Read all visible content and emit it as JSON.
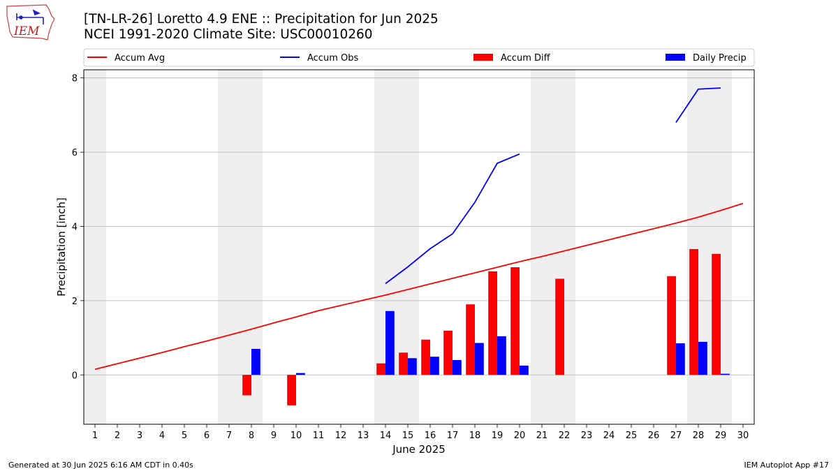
{
  "header": {
    "title_line1": "[TN-LR-26] Loretto 4.9 ENE :: Precipitation for Jun 2025",
    "title_line2": "NCEI 1991-2020 Climate Site: USC00010260",
    "logo_text": "IEM"
  },
  "footer": {
    "generated": "Generated at 30 Jun 2025 6:16 AM CDT in 0.40s",
    "app": "IEM Autoplot App #17"
  },
  "colors": {
    "accum_avg": "#ff0000",
    "accum_obs": "#0000ff",
    "accum_diff": "#ff0000",
    "daily_precip": "#0000ff",
    "weekend_shade": "#eeeeee",
    "grid": "#b0b0b0"
  },
  "chart_data": {
    "type": "bar",
    "xlabel": "June 2025",
    "ylabel": "Precipitation [inch]",
    "xlim": [
      0.5,
      30.5
    ],
    "ylim": [
      -1.33,
      8.22
    ],
    "yticks": [
      0,
      2,
      4,
      6,
      8
    ],
    "grid": "horizontal",
    "legend_position": "top",
    "days": [
      1,
      2,
      3,
      4,
      5,
      6,
      7,
      8,
      9,
      10,
      11,
      12,
      13,
      14,
      15,
      16,
      17,
      18,
      19,
      20,
      21,
      22,
      23,
      24,
      25,
      26,
      27,
      28,
      29,
      30
    ],
    "weekend_shading": [
      [
        0.5,
        1.5
      ],
      [
        6.5,
        8.5
      ],
      [
        13.5,
        15.5
      ],
      [
        20.5,
        22.5
      ],
      [
        27.5,
        29.5
      ]
    ],
    "legend": [
      {
        "name": "Accum Avg",
        "kind": "line",
        "color": "#ff0000"
      },
      {
        "name": "Accum Obs",
        "kind": "line",
        "color": "#0000ff"
      },
      {
        "name": "Accum Diff",
        "kind": "bar",
        "color": "#ff0000"
      },
      {
        "name": "Daily Precip",
        "kind": "bar",
        "color": "#0000ff"
      }
    ],
    "accum_avg": [
      0.15,
      0.3,
      0.45,
      0.6,
      0.76,
      0.91,
      1.07,
      1.23,
      1.4,
      1.56,
      1.73,
      1.87,
      2.01,
      2.15,
      2.3,
      2.45,
      2.6,
      2.75,
      2.9,
      3.05,
      3.19,
      3.34,
      3.49,
      3.64,
      3.79,
      3.94,
      4.09,
      4.25,
      4.43,
      4.62
    ],
    "accum_obs": [
      null,
      null,
      null,
      null,
      null,
      null,
      null,
      null,
      null,
      null,
      null,
      null,
      null,
      2.46,
      2.91,
      3.4,
      3.8,
      4.65,
      5.7,
      5.95,
      null,
      null,
      null,
      null,
      null,
      null,
      6.8,
      7.7,
      7.73,
      null
    ],
    "accum_diff": [
      0,
      0,
      0,
      0,
      0,
      0,
      0,
      -0.55,
      0,
      -0.82,
      0,
      0,
      0,
      0.31,
      0.6,
      0.95,
      1.19,
      1.9,
      2.79,
      2.9,
      0,
      2.59,
      0,
      0,
      0,
      0,
      2.66,
      3.39,
      3.26,
      0
    ],
    "daily_precip": [
      0,
      0,
      0,
      0,
      0,
      0,
      0,
      0.7,
      0,
      0.05,
      0,
      0,
      0,
      1.72,
      0.45,
      0.49,
      0.4,
      0.86,
      1.04,
      0.25,
      0,
      0,
      0,
      0,
      0,
      0,
      0.85,
      0.89,
      0.03,
      0
    ]
  }
}
